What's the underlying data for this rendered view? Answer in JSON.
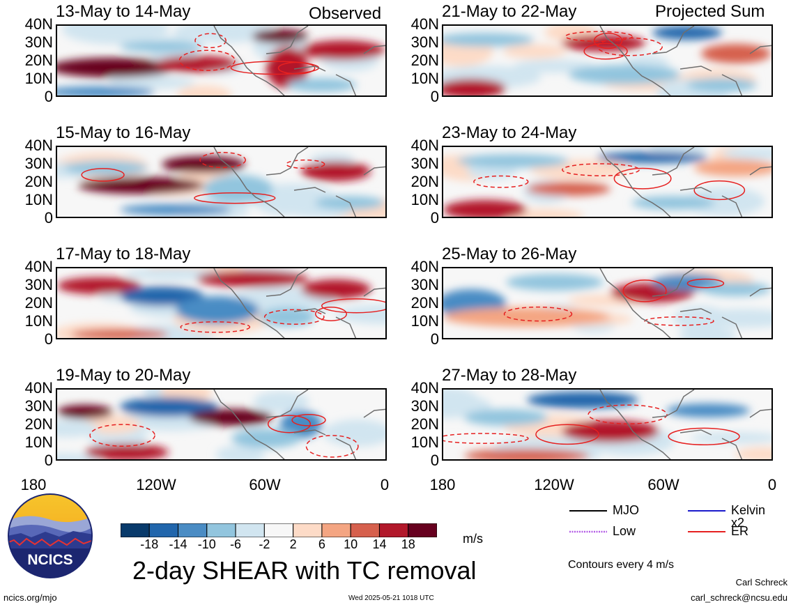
{
  "panels": {
    "observed": {
      "header": "Observed",
      "periods": [
        "13-May to 14-May",
        "15-May to 16-May",
        "17-May to 18-May",
        "19-May to 20-May"
      ]
    },
    "projected": {
      "header": "Projected Sum",
      "periods": [
        "21-May to 22-May",
        "23-May to 24-May",
        "25-May to 26-May",
        "27-May to 28-May"
      ]
    }
  },
  "axes": {
    "lat_labels": [
      "40N",
      "30N",
      "20N",
      "10N",
      "0"
    ],
    "lon_labels": [
      "180",
      "120W",
      "60W",
      "0"
    ]
  },
  "line_legend": {
    "items": [
      {
        "label": "MJO",
        "color": "#000000",
        "style": "solid"
      },
      {
        "label": "Kelvin x2",
        "color": "#1a1acc",
        "style": "solid"
      },
      {
        "label": "Low",
        "color": "#b35ce6",
        "style": "dotted"
      },
      {
        "label": "ER",
        "color": "#e62020",
        "style": "solid"
      }
    ],
    "note": "Contours every 4 m/s"
  },
  "colorbar": {
    "ticks": [
      "-18",
      "-14",
      "-10",
      "-6",
      "-2",
      "2",
      "6",
      "10",
      "14",
      "18"
    ],
    "colors": [
      "#083a6b",
      "#2166ac",
      "#4a8cc4",
      "#92c5de",
      "#d1e5f0",
      "#f7f7f7",
      "#fddbc7",
      "#f4a582",
      "#d6604d",
      "#b2182b",
      "#67001f"
    ],
    "unit": "m/s"
  },
  "title": "2-day SHEAR with TC removal",
  "logo_text": "NCICS",
  "footer": {
    "website": "ncics.org/mjo",
    "timestamp": "Wed 2025-05-21 1018 UTC",
    "author": "Carl Schreck",
    "email": "carl_schreck@ncsu.edu"
  }
}
